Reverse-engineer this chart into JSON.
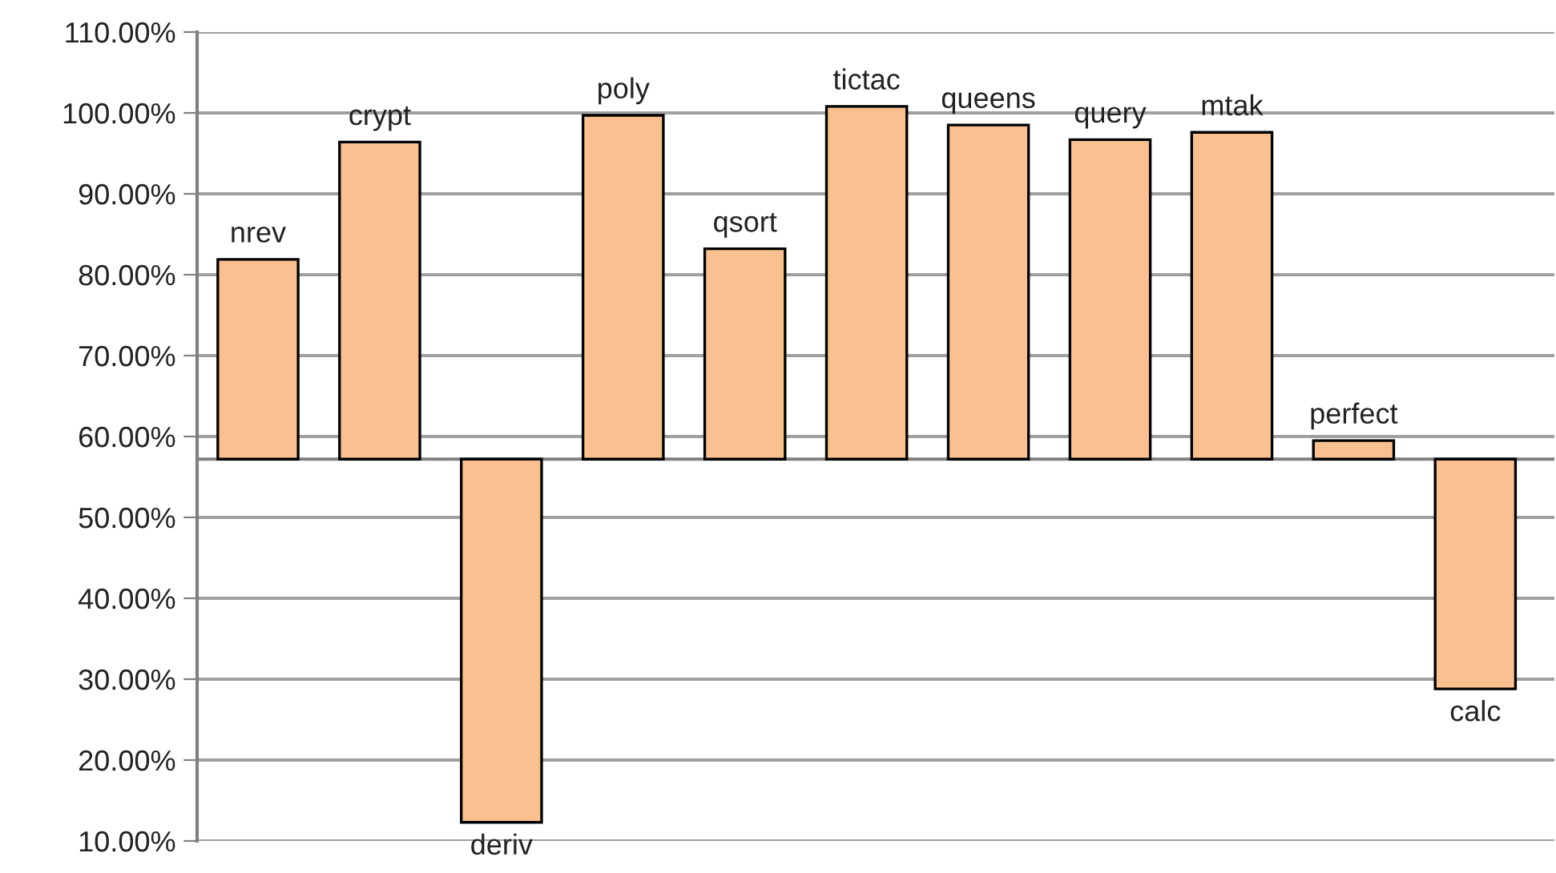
{
  "chart_data": {
    "type": "bar",
    "categories": [
      "nrev",
      "crypt",
      "deriv",
      "poly",
      "qsort",
      "tictac",
      "queens",
      "query",
      "mtak",
      "perfect",
      "calc"
    ],
    "base": [
      57.2,
      57.2,
      57.2,
      57.2,
      57.2,
      57.2,
      57.2,
      57.2,
      57.2,
      57.2,
      57.2
    ],
    "values": [
      24.7,
      39.2,
      -44.9,
      42.5,
      26.0,
      43.6,
      41.3,
      39.5,
      40.4,
      2.3,
      -28.4
    ],
    "color": "#fac090",
    "ylim": [
      10,
      110
    ],
    "yticks": [
      {
        "value": 10,
        "label": "10.00%"
      },
      {
        "value": 20,
        "label": "20.00%"
      },
      {
        "value": 30,
        "label": "30.00%"
      },
      {
        "value": 40,
        "label": "40.00%"
      },
      {
        "value": 50,
        "label": "50.00%"
      },
      {
        "value": 60,
        "label": "60.00%"
      },
      {
        "value": 70,
        "label": "70.00%"
      },
      {
        "value": 80,
        "label": "80.00%"
      },
      {
        "value": 90,
        "label": "90.00%"
      },
      {
        "value": 100,
        "label": "100.00%"
      },
      {
        "value": 110,
        "label": "110.00%"
      }
    ],
    "ref_lines": [
      {
        "axis": "y",
        "value": 57.2,
        "color": "#808080"
      }
    ],
    "grid": "y",
    "tick_labels": "y",
    "legend": false
  }
}
